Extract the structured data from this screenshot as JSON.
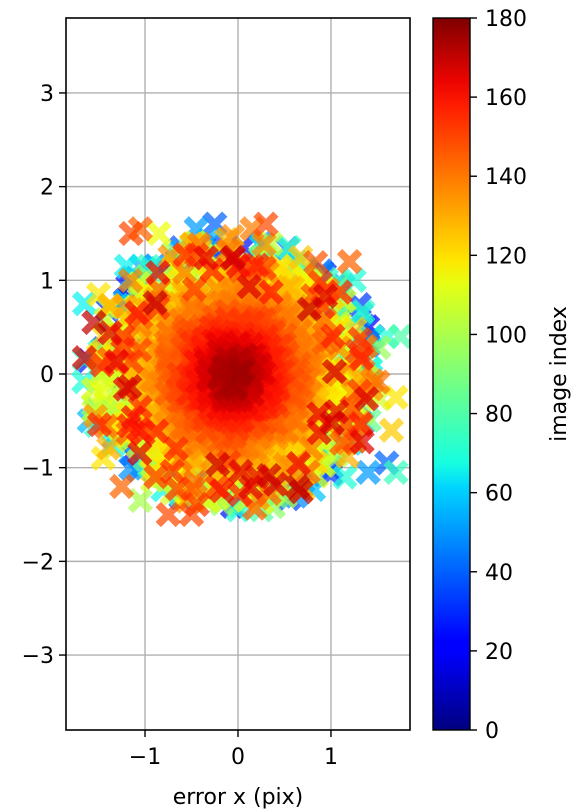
{
  "chart_data": {
    "type": "scatter",
    "marker": "X",
    "title": "",
    "xlabel": "error x (pix)",
    "ylabel": "",
    "xlim": [
      -1.85,
      1.85
    ],
    "ylim": [
      -3.8,
      3.8
    ],
    "x_ticks": [
      -1,
      0,
      1
    ],
    "y_ticks": [
      -3,
      -2,
      -1,
      0,
      1,
      2,
      3
    ],
    "grid": true,
    "colorbar": {
      "label": "image index",
      "colormap": "jet",
      "range": [
        0,
        180
      ],
      "ticks": [
        0,
        20,
        40,
        60,
        80,
        100,
        120,
        140,
        160,
        180
      ]
    },
    "point_cloud": {
      "description_center": [
        -0.05,
        0.0
      ],
      "value_range": [
        0,
        180
      ],
      "highlights": [
        {
          "x": -1.65,
          "y": 0.75,
          "c": 65
        },
        {
          "x": -1.5,
          "y": 0.85,
          "c": 120
        },
        {
          "x": -1.6,
          "y": -0.5,
          "c": 55
        },
        {
          "x": -1.45,
          "y": -0.9,
          "c": 120
        },
        {
          "x": -1.25,
          "y": -1.2,
          "c": 145
        },
        {
          "x": -1.05,
          "y": -1.35,
          "c": 100
        },
        {
          "x": -0.75,
          "y": -1.5,
          "c": 150
        },
        {
          "x": -0.5,
          "y": -1.5,
          "c": 150
        },
        {
          "x": 0.0,
          "y": -1.45,
          "c": 70
        },
        {
          "x": 0.25,
          "y": -1.45,
          "c": 80
        },
        {
          "x": 0.7,
          "y": -1.15,
          "c": 40
        },
        {
          "x": 1.15,
          "y": -1.1,
          "c": 70
        },
        {
          "x": 1.4,
          "y": -1.05,
          "c": 50
        },
        {
          "x": 1.6,
          "y": -0.95,
          "c": 40
        },
        {
          "x": 1.7,
          "y": -1.05,
          "c": 75
        },
        {
          "x": 1.65,
          "y": -0.6,
          "c": 125
        },
        {
          "x": 1.7,
          "y": -0.25,
          "c": 120
        },
        {
          "x": 1.6,
          "y": 0.4,
          "c": 70
        },
        {
          "x": 1.75,
          "y": 0.4,
          "c": 80
        },
        {
          "x": 1.45,
          "y": 0.4,
          "c": 45
        },
        {
          "x": 1.25,
          "y": 1.0,
          "c": 70
        },
        {
          "x": 1.2,
          "y": 1.2,
          "c": 145
        },
        {
          "x": 0.9,
          "y": 1.1,
          "c": 40
        },
        {
          "x": 0.55,
          "y": 1.35,
          "c": 75
        },
        {
          "x": 0.3,
          "y": 1.6,
          "c": 150
        },
        {
          "x": 0.15,
          "y": 1.55,
          "c": 140
        },
        {
          "x": -0.25,
          "y": 1.6,
          "c": 40
        },
        {
          "x": -0.45,
          "y": 1.55,
          "c": 50
        },
        {
          "x": -0.85,
          "y": 1.5,
          "c": 115
        },
        {
          "x": -1.05,
          "y": 1.55,
          "c": 145
        },
        {
          "x": -1.15,
          "y": 1.5,
          "c": 150
        },
        {
          "x": -1.2,
          "y": 1.15,
          "c": 65
        },
        {
          "x": -1.15,
          "y": 1.0,
          "c": 40
        },
        {
          "x": -1.55,
          "y": 0.55,
          "c": 170
        }
      ]
    }
  }
}
